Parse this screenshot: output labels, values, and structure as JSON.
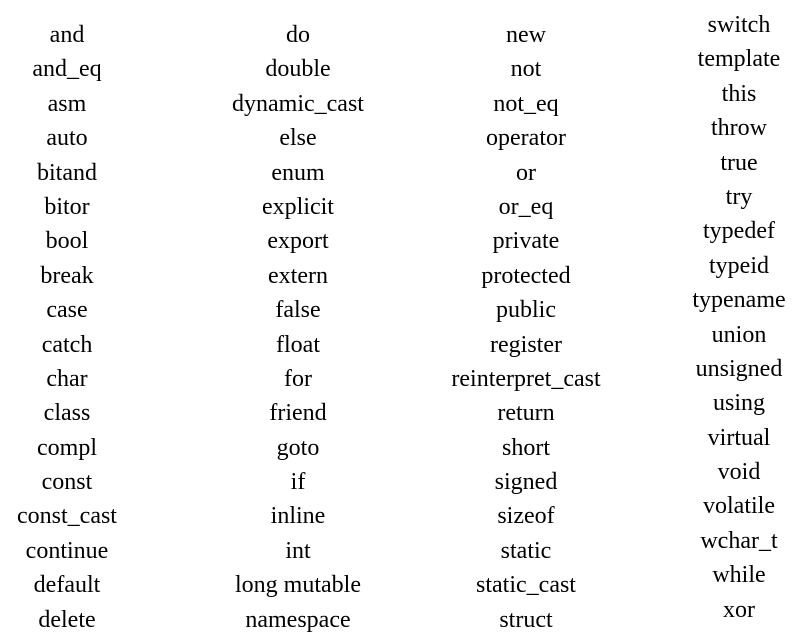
{
  "columns": [
    {
      "items": [
        "and",
        "and_eq",
        "asm",
        "auto",
        "bitand",
        "bitor",
        "bool",
        "break",
        "case",
        "catch",
        "char",
        "class",
        "compl",
        "const",
        "const_cast",
        "continue",
        "default",
        "delete"
      ]
    },
    {
      "items": [
        "do",
        "double",
        "dynamic_cast",
        "else",
        "enum",
        "explicit",
        "export",
        "extern",
        "false",
        "float",
        "for",
        "friend",
        "goto",
        "if",
        "inline",
        "int",
        "long mutable",
        "namespace"
      ]
    },
    {
      "items": [
        "new",
        "not",
        "not_eq",
        "operator",
        "or",
        "or_eq",
        "private",
        "protected",
        "public",
        "register",
        "reinterpret_cast",
        "return",
        "short",
        "signed",
        "sizeof",
        "static",
        "static_cast",
        "struct"
      ]
    },
    {
      "items": [
        "switch",
        "template",
        "this",
        "throw",
        "true",
        "try",
        "typedef",
        "typeid",
        "typename",
        "union",
        "unsigned",
        "using",
        "virtual",
        "void",
        "volatile",
        "wchar_t",
        "while",
        "xor"
      ]
    }
  ]
}
